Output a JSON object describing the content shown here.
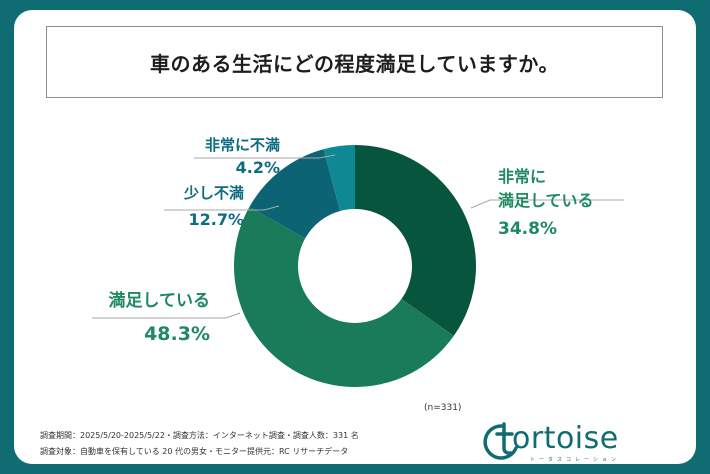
{
  "title": "車のある生活にどの程度満足していますか。",
  "chart_data": {
    "type": "pie",
    "donut": true,
    "start_angle_deg": 0,
    "direction": "clockwise",
    "slices": [
      {
        "label_lines": [
          "非常に",
          "満足している"
        ],
        "value": 34.8,
        "value_text": "34.8%",
        "color": "#07553c"
      },
      {
        "label_lines": [
          "満足している"
        ],
        "value": 48.3,
        "value_text": "48.3%",
        "color": "#197b5a"
      },
      {
        "label_lines": [
          "少し不満"
        ],
        "value": 12.7,
        "value_text": "12.7%",
        "color": "#0b6373"
      },
      {
        "label_lines": [
          "非常に不満"
        ],
        "value": 4.2,
        "value_text": "4.2%",
        "color": "#0f8893"
      }
    ],
    "n_note": "(n=331)"
  },
  "footer": {
    "line1": "調査期間：2025/5/20-2025/5/22・調査方法：インターネット調査・調査人数：331 名",
    "line2": "調査対象：自動車を保有している 20 代の男女・モニター提供元：RC リサーチデータ"
  },
  "logo": {
    "word": "ortoise",
    "sub": "トータスコレーション"
  },
  "colors": {
    "background": "#0e6c72",
    "label_green": "#1f8a62",
    "label_teal": "#0d6b82"
  }
}
